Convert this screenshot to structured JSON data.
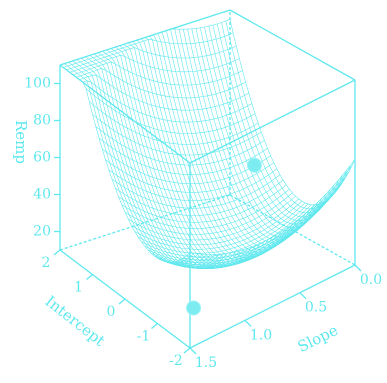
{
  "chart_data": {
    "type": "surface3d",
    "color": "#5fe8ee",
    "axes": {
      "z": {
        "label": "Remp",
        "ticks": [
          20,
          40,
          60,
          80,
          100
        ],
        "range": [
          10,
          110
        ]
      },
      "intercept": {
        "label": "Intercept",
        "ticks": [
          2,
          1,
          0,
          -1,
          -2
        ],
        "range": [
          -2,
          2
        ]
      },
      "slope": {
        "label": "Slope",
        "ticks": [
          0.0,
          0.5,
          1.0,
          1.5
        ],
        "tick_labels": [
          "0.0",
          "0.5",
          "1.0",
          "1.5"
        ],
        "range": [
          0,
          1.5
        ]
      }
    },
    "points": [
      {
        "intercept": 0.5,
        "slope": 0.2,
        "remp": 45
      },
      {
        "intercept": -1.6,
        "slope": 1.35,
        "remp": 22
      }
    ],
    "grid": {
      "n_intercept": 40,
      "n_slope": 40
    }
  }
}
